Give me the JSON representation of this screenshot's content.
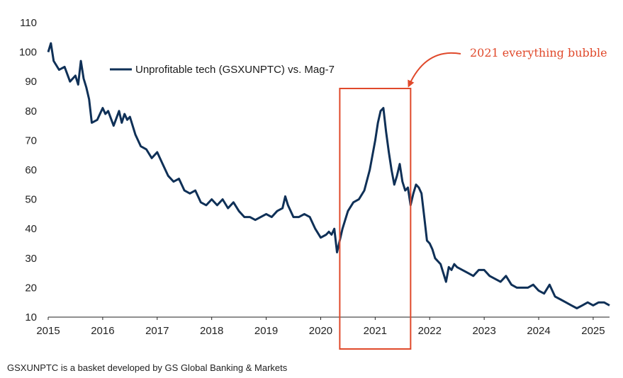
{
  "chart_data": {
    "type": "line",
    "title": "",
    "xlabel": "",
    "ylabel": "",
    "ylim": [
      10,
      110
    ],
    "xlim": [
      2015.0,
      2025.3
    ],
    "y_ticks": [
      "10",
      "20",
      "30",
      "40",
      "50",
      "60",
      "70",
      "80",
      "90",
      "100",
      "110"
    ],
    "x_ticks": [
      "2015",
      "2016",
      "2017",
      "2018",
      "2019",
      "2020",
      "2021",
      "2022",
      "2023",
      "2024",
      "2025"
    ],
    "legend": {
      "position": "top-left",
      "entries": [
        "Unprofitable tech (GSXUNPTC) vs. Mag-7"
      ]
    },
    "series": [
      {
        "name": "Unprofitable tech (GSXUNPTC) vs. Mag-7",
        "color": "#0f3057",
        "x": [
          2015.0,
          2015.05,
          2015.1,
          2015.2,
          2015.3,
          2015.4,
          2015.5,
          2015.55,
          2015.6,
          2015.65,
          2015.7,
          2015.75,
          2015.8,
          2015.9,
          2016.0,
          2016.05,
          2016.1,
          2016.2,
          2016.3,
          2016.35,
          2016.4,
          2016.45,
          2016.5,
          2016.6,
          2016.7,
          2016.8,
          2016.9,
          2017.0,
          2017.1,
          2017.2,
          2017.3,
          2017.4,
          2017.5,
          2017.6,
          2017.7,
          2017.8,
          2017.9,
          2018.0,
          2018.1,
          2018.2,
          2018.3,
          2018.4,
          2018.5,
          2018.6,
          2018.7,
          2018.8,
          2018.9,
          2019.0,
          2019.1,
          2019.2,
          2019.3,
          2019.35,
          2019.4,
          2019.5,
          2019.6,
          2019.7,
          2019.8,
          2019.9,
          2020.0,
          2020.1,
          2020.15,
          2020.2,
          2020.25,
          2020.3,
          2020.4,
          2020.5,
          2020.6,
          2020.7,
          2020.8,
          2020.9,
          2021.0,
          2021.05,
          2021.1,
          2021.15,
          2021.2,
          2021.25,
          2021.3,
          2021.35,
          2021.4,
          2021.45,
          2021.5,
          2021.55,
          2021.6,
          2021.65,
          2021.7,
          2021.75,
          2021.8,
          2021.85,
          2021.9,
          2021.95,
          2022.0,
          2022.05,
          2022.1,
          2022.2,
          2022.3,
          2022.35,
          2022.4,
          2022.45,
          2022.5,
          2022.6,
          2022.7,
          2022.8,
          2022.9,
          2023.0,
          2023.1,
          2023.2,
          2023.3,
          2023.4,
          2023.5,
          2023.6,
          2023.7,
          2023.8,
          2023.9,
          2024.0,
          2024.1,
          2024.2,
          2024.3,
          2024.4,
          2024.5,
          2024.6,
          2024.7,
          2024.8,
          2024.9,
          2025.0,
          2025.1,
          2025.2,
          2025.3
        ],
        "values": [
          100,
          103,
          97,
          94,
          95,
          90,
          92,
          89,
          97,
          91,
          88,
          84,
          76,
          77,
          81,
          79,
          80,
          75,
          80,
          76,
          79,
          77,
          78,
          72,
          68,
          67,
          64,
          66,
          62,
          58,
          56,
          57,
          53,
          52,
          53,
          49,
          48,
          50,
          48,
          50,
          47,
          49,
          46,
          44,
          44,
          43,
          44,
          45,
          44,
          46,
          47,
          51,
          48,
          44,
          44,
          45,
          44,
          40,
          37,
          38,
          39,
          38,
          40,
          32,
          40,
          46,
          49,
          50,
          53,
          60,
          70,
          76,
          80,
          81,
          73,
          66,
          60,
          55,
          58,
          62,
          56,
          53,
          54,
          48,
          52,
          55,
          54,
          52,
          44,
          36,
          35,
          33,
          30,
          28,
          22,
          27,
          26,
          28,
          27,
          26,
          25,
          24,
          26,
          26,
          24,
          23,
          22,
          24,
          21,
          20,
          20,
          20,
          21,
          19,
          18,
          21,
          17,
          16,
          15,
          14,
          13,
          14,
          15,
          14,
          15,
          15,
          14
        ]
      }
    ],
    "highlight": {
      "x_start": 2020.35,
      "x_end": 2021.65,
      "color": "#e0492b"
    },
    "annotation": {
      "text": "2021 everything bubble",
      "color": "#e0492b",
      "points_to": "highlight box"
    },
    "footnote": "GSXUNPTC is a basket developed by GS Global Banking & Markets"
  }
}
